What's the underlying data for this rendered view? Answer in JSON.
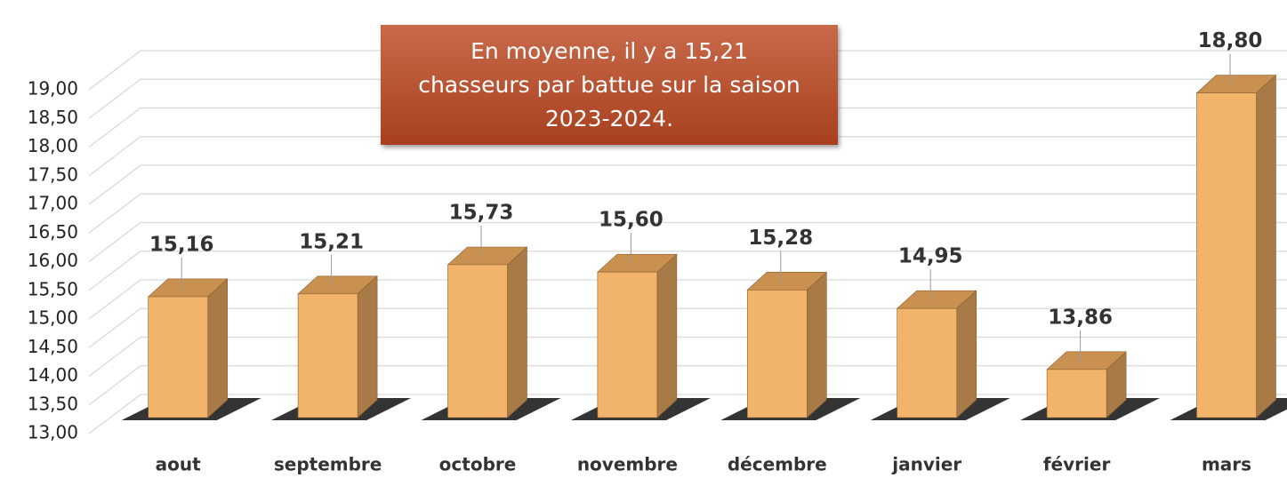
{
  "chart_data": {
    "type": "bar3d",
    "annotation": "En moyenne, il y a 15,21 chasseurs par battue sur la saison 2023-2024.",
    "categories": [
      "aout",
      "septembre",
      "octobre",
      "novembre",
      "décembre",
      "janvier",
      "février",
      "mars"
    ],
    "values": [
      15.16,
      15.21,
      15.73,
      15.6,
      15.28,
      14.95,
      13.86,
      18.8
    ],
    "value_labels": [
      "15,16",
      "15,21",
      "15,73",
      "15,60",
      "15,28",
      "14,95",
      "13,86",
      "18,80"
    ],
    "color": "#f2b36b",
    "ylim": [
      13,
      19
    ],
    "yticks": [
      {
        "value": 13,
        "label": "13,00"
      },
      {
        "value": 13.5,
        "label": "13,50"
      },
      {
        "value": 14,
        "label": "14,00"
      },
      {
        "value": 14.5,
        "label": "14,50"
      },
      {
        "value": 15,
        "label": "15,00"
      },
      {
        "value": 15.5,
        "label": "15,50"
      },
      {
        "value": 16,
        "label": "16,00"
      },
      {
        "value": 16.5,
        "label": "16,50"
      },
      {
        "value": 17,
        "label": "17,00"
      },
      {
        "value": 17.5,
        "label": "17,50"
      },
      {
        "value": 18,
        "label": "18,00"
      },
      {
        "value": 18.5,
        "label": "18,50"
      },
      {
        "value": 19,
        "label": "19,00"
      }
    ],
    "grid": true
  }
}
